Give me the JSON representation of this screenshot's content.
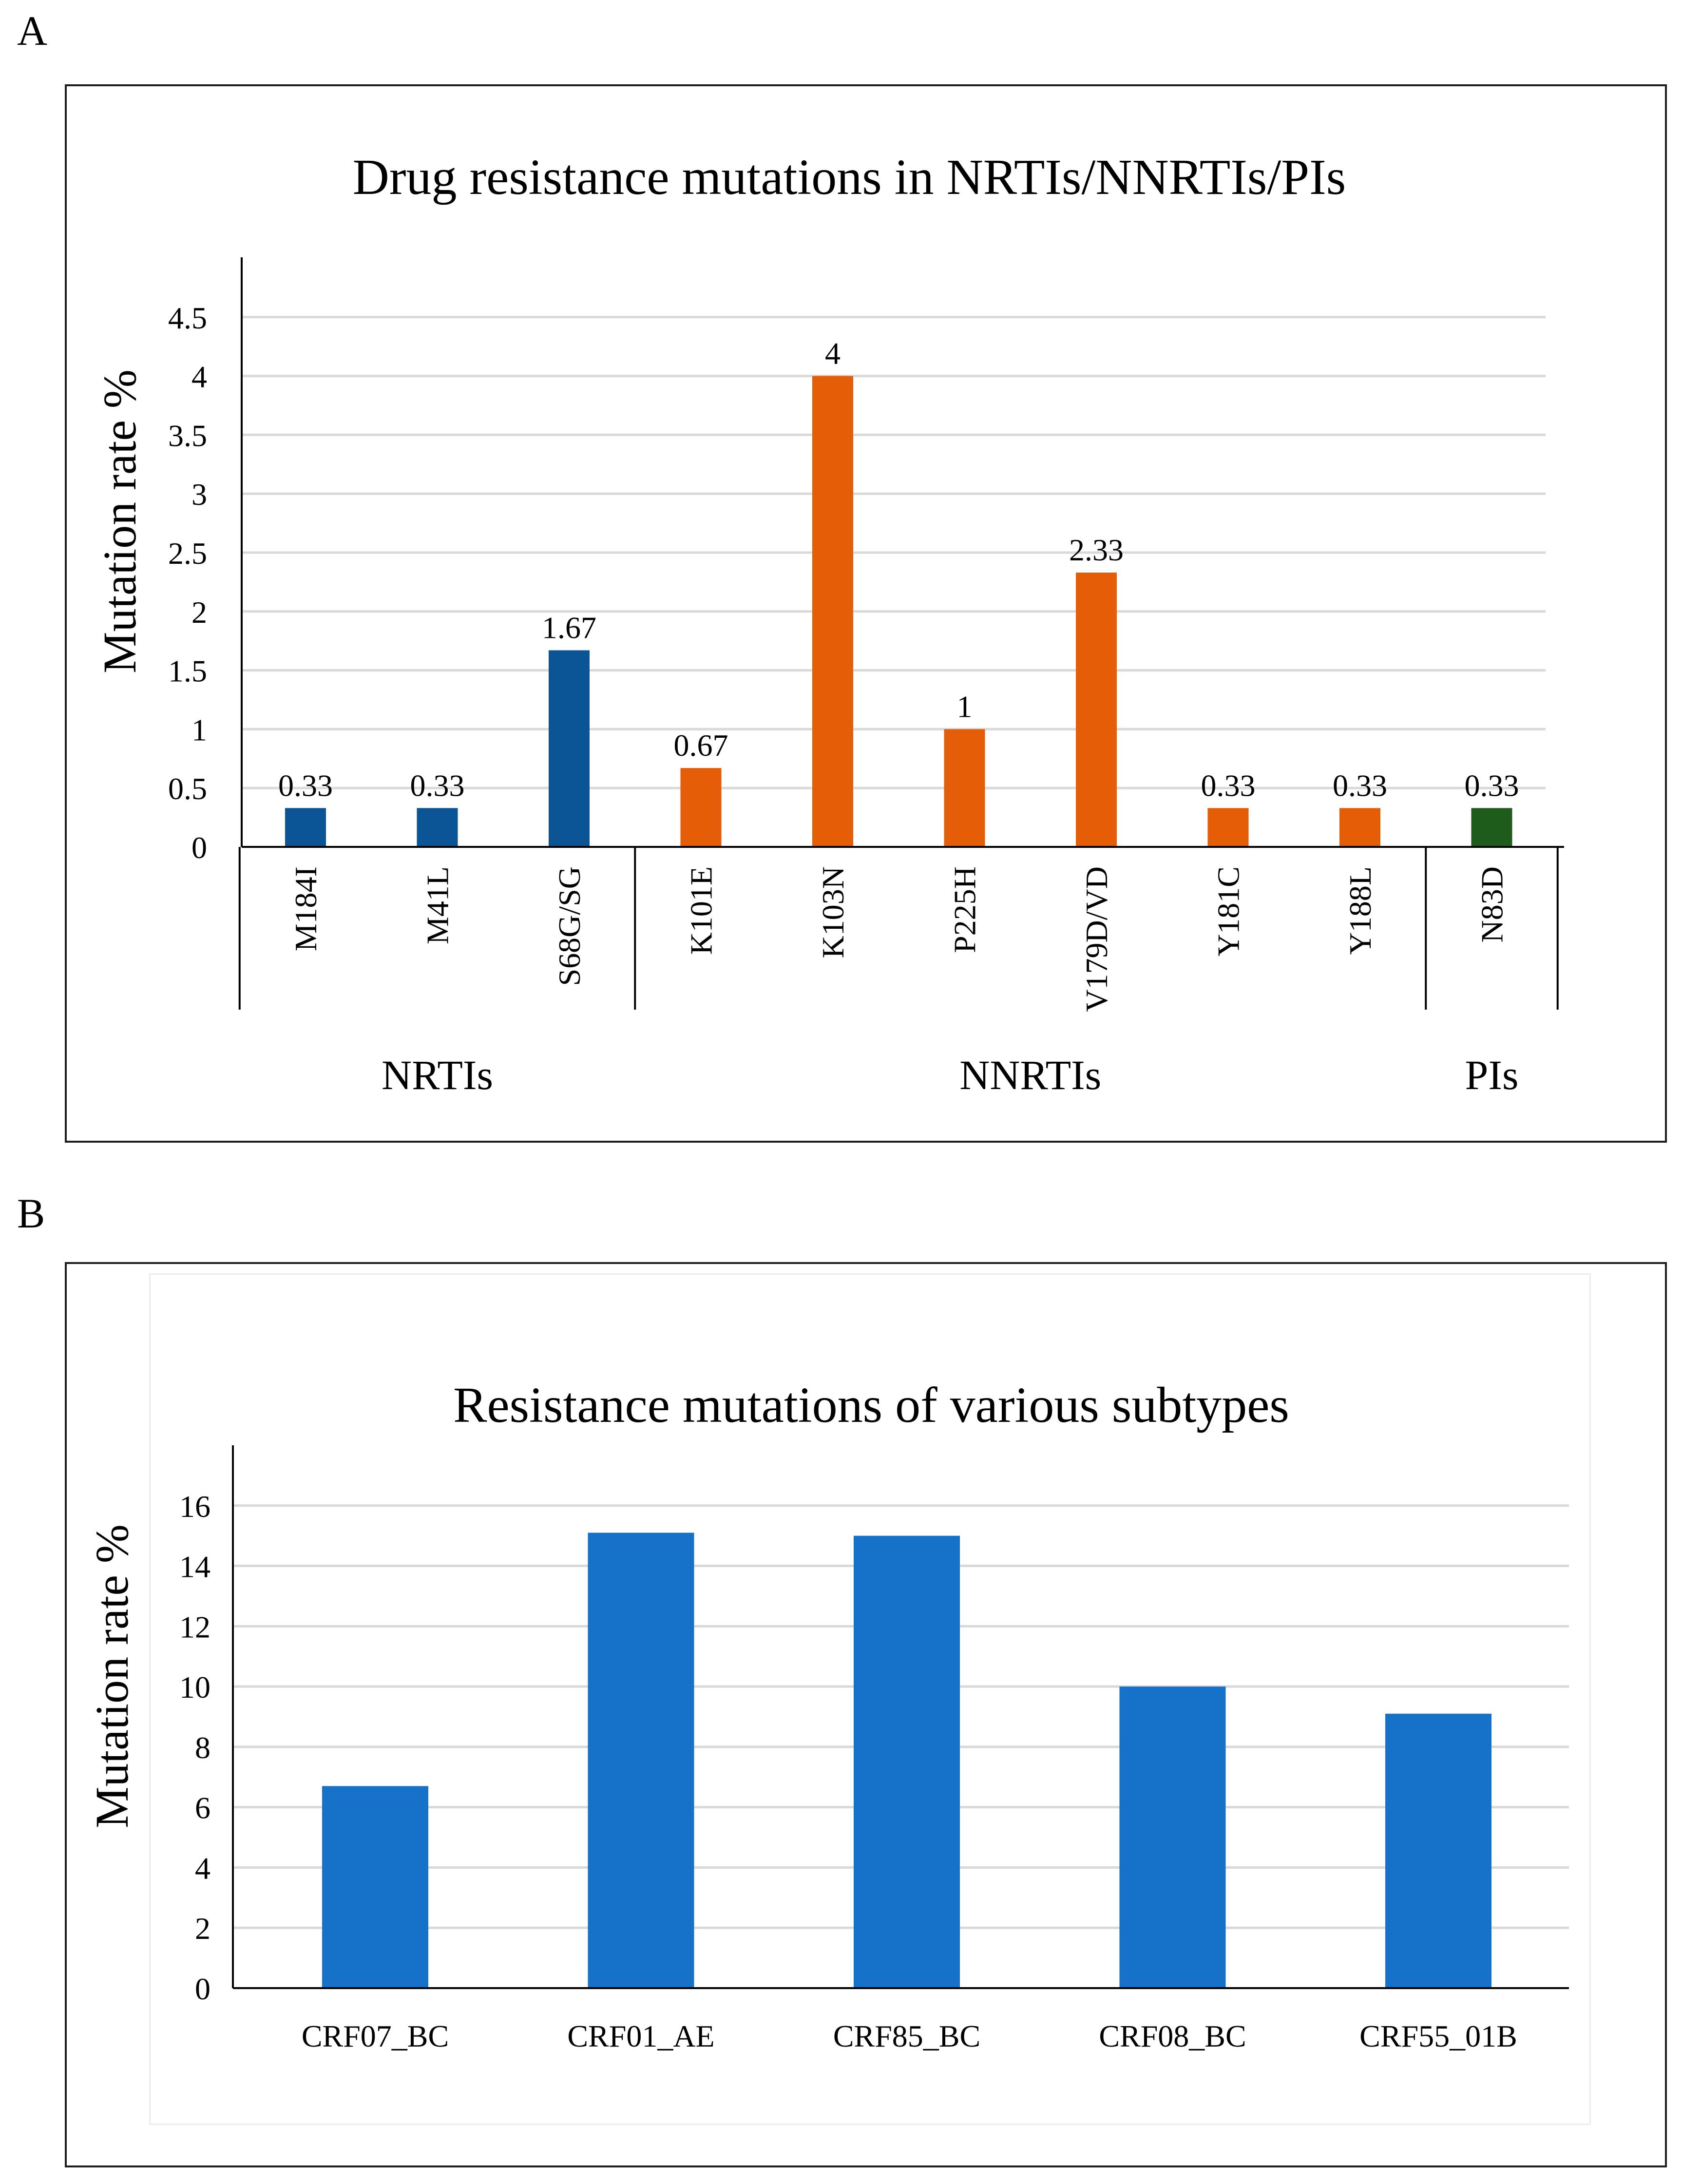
{
  "panels": {
    "a": {
      "label": "A"
    },
    "b": {
      "label": "B"
    }
  },
  "colors": {
    "nrti": "#0b5597",
    "nnrti": "#e55d06",
    "pi": "#1e5c1c",
    "subtype": "#1672c8",
    "grid": "#d9d9d9",
    "axis": "#000000"
  },
  "chart_data": [
    {
      "type": "bar",
      "title": "Drug resistance mutations in NRTIs/NNRTIs/PIs",
      "xlabel": "",
      "ylabel": "Mutation rate %",
      "ylim": [
        0,
        5
      ],
      "yticks": [
        "0",
        "0.5",
        "1",
        "1.5",
        "2",
        "2.5",
        "3",
        "3.5",
        "4",
        "4.5"
      ],
      "categories": [
        "M184I",
        "M41L",
        "S68G/SG",
        "K101E",
        "K103N",
        "P225H",
        "V179D/VD",
        "Y181C",
        "Y188L",
        "N83D"
      ],
      "values": [
        0.33,
        0.33,
        1.67,
        0.67,
        4,
        1,
        2.33,
        0.33,
        0.33,
        0.33
      ],
      "value_labels": [
        "0.33",
        "0.33",
        "1.67",
        "0.67",
        "4",
        "1",
        "2.33",
        "0.33",
        "0.33",
        "0.33"
      ],
      "bar_groups": [
        "nrti",
        "nrti",
        "nrti",
        "nnrti",
        "nnrti",
        "nnrti",
        "nnrti",
        "nnrti",
        "nnrti",
        "pi"
      ],
      "groups": [
        {
          "key": "nrti",
          "label": "NRTIs",
          "start": 0,
          "end": 2
        },
        {
          "key": "nnrti",
          "label": "NNRTIs",
          "start": 3,
          "end": 8
        },
        {
          "key": "pi",
          "label": "PIs",
          "start": 9,
          "end": 9
        }
      ],
      "grid": true
    },
    {
      "type": "bar",
      "title": "Resistance mutations of various subtypes",
      "xlabel": "",
      "ylabel": "Mutation rate %",
      "ylim": [
        0,
        18
      ],
      "yticks": [
        "0",
        "2",
        "4",
        "6",
        "8",
        "10",
        "12",
        "14",
        "16"
      ],
      "categories": [
        "CRF07_BC",
        "CRF01_AE",
        "CRF85_BC",
        "CRF08_BC",
        "CRF55_01B"
      ],
      "values": [
        6.7,
        15.1,
        15.0,
        10.0,
        9.1
      ],
      "grid": true
    }
  ]
}
